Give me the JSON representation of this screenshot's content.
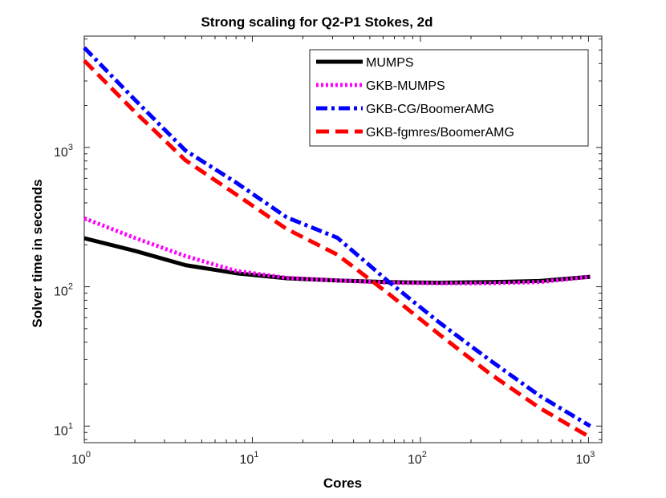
{
  "chart_data": {
    "type": "line",
    "title": "Strong scaling for Q2-P1 Stokes, 2d",
    "xlabel": "Cores",
    "ylabel": "Solver time in seconds",
    "xscale": "log",
    "yscale": "log",
    "xlim": [
      1,
      1200
    ],
    "ylim": [
      7.6,
      6300
    ],
    "x_ticks": [
      {
        "base": "10",
        "exp": "0",
        "value": 1
      },
      {
        "base": "10",
        "exp": "1",
        "value": 10
      },
      {
        "base": "10",
        "exp": "2",
        "value": 100
      },
      {
        "base": "10",
        "exp": "3",
        "value": 1000
      }
    ],
    "y_ticks": [
      {
        "base": "10",
        "exp": "1",
        "value": 10
      },
      {
        "base": "10",
        "exp": "2",
        "value": 100
      },
      {
        "base": "10",
        "exp": "3",
        "value": 1000
      }
    ],
    "legend_position": "top-right",
    "series": [
      {
        "name": "MUMPS",
        "color": "#000000",
        "dash": "solid",
        "x": [
          1,
          2,
          4,
          8,
          16,
          32,
          64,
          128,
          256,
          512,
          1024
        ],
        "values": [
          223,
          181,
          143,
          125,
          115,
          111,
          108,
          107,
          108,
          110,
          118
        ]
      },
      {
        "name": "GKB-MUMPS",
        "color": "#ff00ff",
        "dash": "dotted",
        "x": [
          1,
          2,
          4,
          8,
          16,
          32,
          64,
          128,
          256,
          512,
          1024
        ],
        "values": [
          310,
          224,
          166,
          130,
          116,
          111,
          107,
          106,
          106,
          108,
          118
        ]
      },
      {
        "name": "GKB-CG/BoomerAMG",
        "color": "#0000ff",
        "dash": "dashdot",
        "x": [
          1,
          2,
          4,
          8,
          16,
          32,
          64,
          128,
          256,
          512,
          1024
        ],
        "values": [
          5200,
          2200,
          950,
          560,
          315,
          225,
          110,
          56,
          30,
          16.5,
          10
        ]
      },
      {
        "name": "GKB-fgmres/BoomerAMG",
        "color": "#ff0000",
        "dash": "dashed",
        "x": [
          1,
          2,
          4,
          8,
          16,
          32,
          64,
          128,
          256,
          512,
          1024
        ],
        "values": [
          4200,
          1800,
          810,
          460,
          260,
          170,
          90,
          46,
          24,
          13.5,
          8.3
        ]
      }
    ]
  }
}
